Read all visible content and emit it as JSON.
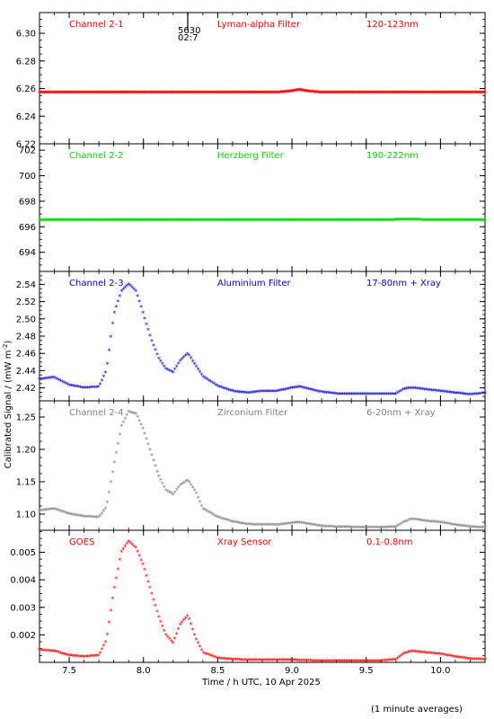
{
  "figure": {
    "ylabel": "Calibrated Signal / (mW m",
    "ylabel_sup": "-2",
    "ylabel_end": ")",
    "xlabel": "Time / h UTC, 10 Apr 2025",
    "footnote": "(1 minute averages)",
    "marker_text_1": "5630",
    "marker_text_2": "02:7"
  },
  "chart_data": [
    {
      "type": "scatter",
      "channel": "Channel 2-1",
      "filter": "Lyman-alpha Filter",
      "band": "120-123nm",
      "color": "#ff0000",
      "xlim": [
        7.3,
        10.3
      ],
      "ylim": [
        6.22,
        6.315
      ],
      "yticks": [
        6.22,
        6.24,
        6.26,
        6.28,
        6.3
      ],
      "ytick_labels": [
        "6.22",
        "6.24",
        "6.26",
        "6.28",
        "6.30"
      ],
      "grid": false,
      "series": [
        {
          "name": "Lyman-alpha Filter",
          "x": [
            7.3,
            7.5,
            8.0,
            8.5,
            8.9,
            9.0,
            9.05,
            9.1,
            9.2,
            9.5,
            10.0,
            10.3
          ],
          "y": [
            6.257,
            6.257,
            6.257,
            6.257,
            6.257,
            6.258,
            6.259,
            6.258,
            6.257,
            6.257,
            6.257,
            6.257
          ]
        }
      ]
    },
    {
      "type": "scatter",
      "channel": "Channel 2-2",
      "filter": "Herzberg Filter",
      "band": "190-222nm",
      "color": "#00dd00",
      "xlim": [
        7.3,
        10.3
      ],
      "ylim": [
        692.5,
        702.5
      ],
      "yticks": [
        694,
        696,
        698,
        700,
        702
      ],
      "ytick_labels": [
        "694",
        "696",
        "698",
        "700",
        "702"
      ],
      "grid": false,
      "series": [
        {
          "name": "Herzberg Filter",
          "x": [
            7.3,
            8.0,
            8.5,
            9.0,
            9.5,
            9.8,
            10.0,
            10.3
          ],
          "y": [
            696.5,
            696.5,
            696.5,
            696.5,
            696.5,
            696.55,
            696.5,
            696.5
          ]
        }
      ]
    },
    {
      "type": "scatter",
      "channel": "Channel 2-3",
      "filter": "Aluminium Filter",
      "band": "17-80nm + Xray",
      "color": "#0000dd",
      "xlim": [
        7.3,
        10.3
      ],
      "ylim": [
        2.405,
        2.555
      ],
      "yticks": [
        2.42,
        2.44,
        2.46,
        2.48,
        2.5,
        2.52,
        2.54
      ],
      "ytick_labels": [
        "2.42",
        "2.44",
        "2.46",
        "2.48",
        "2.50",
        "2.52",
        "2.54"
      ],
      "grid": false,
      "series": [
        {
          "name": "Aluminium Filter",
          "x": [
            7.3,
            7.4,
            7.5,
            7.6,
            7.7,
            7.75,
            7.8,
            7.85,
            7.9,
            7.95,
            8.0,
            8.05,
            8.1,
            8.15,
            8.2,
            8.25,
            8.3,
            8.35,
            8.4,
            8.5,
            8.6,
            8.7,
            8.8,
            8.9,
            9.0,
            9.05,
            9.1,
            9.2,
            9.3,
            9.5,
            9.6,
            9.7,
            9.75,
            9.8,
            9.85,
            9.9,
            10.0,
            10.1,
            10.2,
            10.3
          ],
          "y": [
            2.43,
            2.432,
            2.423,
            2.42,
            2.421,
            2.44,
            2.505,
            2.532,
            2.54,
            2.532,
            2.505,
            2.477,
            2.455,
            2.442,
            2.438,
            2.452,
            2.46,
            2.446,
            2.433,
            2.422,
            2.416,
            2.414,
            2.416,
            2.416,
            2.42,
            2.421,
            2.419,
            2.415,
            2.413,
            2.413,
            2.413,
            2.413,
            2.418,
            2.42,
            2.419,
            2.418,
            2.416,
            2.414,
            2.412,
            2.414
          ]
        }
      ]
    },
    {
      "type": "scatter",
      "channel": "Channel 2-4",
      "filter": "Zirconium Filter",
      "band": "6-20nm + Xray",
      "color": "#808080",
      "xlim": [
        7.3,
        10.3
      ],
      "ylim": [
        1.075,
        1.275
      ],
      "yticks": [
        1.1,
        1.15,
        1.2,
        1.25
      ],
      "ytick_labels": [
        "1.10",
        "1.15",
        "1.20",
        "1.25"
      ],
      "grid": false,
      "series": [
        {
          "name": "Zirconium Filter",
          "x": [
            7.3,
            7.4,
            7.5,
            7.6,
            7.7,
            7.75,
            7.8,
            7.85,
            7.9,
            7.95,
            8.0,
            8.05,
            8.1,
            8.15,
            8.2,
            8.25,
            8.3,
            8.35,
            8.4,
            8.5,
            8.6,
            8.7,
            8.8,
            8.9,
            9.0,
            9.05,
            9.1,
            9.2,
            9.3,
            9.5,
            9.6,
            9.7,
            9.75,
            9.8,
            9.85,
            9.9,
            10.0,
            10.1,
            10.2,
            10.3
          ],
          "y": [
            1.105,
            1.108,
            1.1,
            1.096,
            1.095,
            1.11,
            1.175,
            1.235,
            1.258,
            1.255,
            1.23,
            1.195,
            1.16,
            1.137,
            1.13,
            1.145,
            1.152,
            1.135,
            1.108,
            1.095,
            1.088,
            1.084,
            1.083,
            1.083,
            1.086,
            1.087,
            1.085,
            1.081,
            1.08,
            1.079,
            1.079,
            1.08,
            1.087,
            1.092,
            1.091,
            1.089,
            1.087,
            1.083,
            1.08,
            1.079
          ]
        }
      ]
    },
    {
      "type": "scatter",
      "channel": "GOES",
      "filter": "Xray Sensor",
      "band": "0.1-0.8nm",
      "color": "#ff0000",
      "xlim": [
        7.3,
        10.3
      ],
      "ylim": [
        0.001,
        0.0058
      ],
      "yticks": [
        0.002,
        0.003,
        0.004,
        0.005
      ],
      "ytick_labels": [
        "0.002",
        "0.003",
        "0.004",
        "0.005"
      ],
      "grid": false,
      "series": [
        {
          "name": "Xray Sensor",
          "x": [
            7.3,
            7.4,
            7.5,
            7.6,
            7.7,
            7.75,
            7.8,
            7.85,
            7.9,
            7.95,
            8.0,
            8.05,
            8.1,
            8.15,
            8.2,
            8.25,
            8.3,
            8.35,
            8.4,
            8.5,
            8.6,
            8.7,
            8.8,
            8.9,
            9.0,
            9.1,
            9.2,
            9.3,
            9.5,
            9.6,
            9.7,
            9.75,
            9.8,
            9.9,
            10.0,
            10.1,
            10.2,
            10.3
          ],
          "y": [
            0.00145,
            0.0014,
            0.00125,
            0.0012,
            0.00125,
            0.0018,
            0.0036,
            0.005,
            0.0054,
            0.00515,
            0.0045,
            0.0036,
            0.0027,
            0.002,
            0.0017,
            0.0024,
            0.0027,
            0.0019,
            0.00135,
            0.00115,
            0.0011,
            0.00108,
            0.00108,
            0.00108,
            0.00108,
            0.00106,
            0.00105,
            0.00105,
            0.00105,
            0.00105,
            0.0011,
            0.0013,
            0.0014,
            0.00135,
            0.0013,
            0.0012,
            0.00112,
            0.0011
          ]
        }
      ]
    }
  ],
  "x_axis": {
    "ticks": [
      7.5,
      8.0,
      8.5,
      9.0,
      9.5,
      10.0
    ],
    "tick_labels": [
      "7.5",
      "8.0",
      "8.5",
      "9.0",
      "9.5",
      "10.0"
    ],
    "minor_step": 0.1,
    "xlim": [
      7.3,
      10.3
    ]
  }
}
